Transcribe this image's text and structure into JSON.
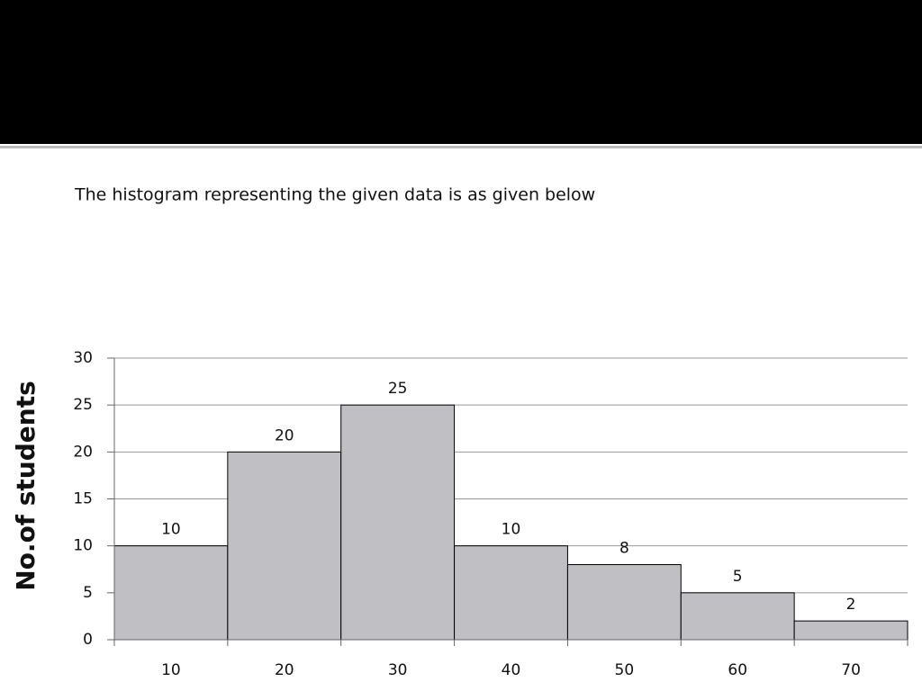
{
  "description": "The histogram representing the given data is as given below",
  "chart_data": {
    "type": "bar",
    "ylabel": "No.of students",
    "categories": [
      "10",
      "20",
      "30",
      "40",
      "50",
      "60",
      "70"
    ],
    "values": [
      10,
      20,
      25,
      10,
      8,
      5,
      2
    ],
    "color": "#c0c0c4",
    "ylim": [
      0,
      30
    ],
    "yticks": [
      0,
      5,
      10,
      15,
      20,
      25,
      30
    ],
    "grid": true
  }
}
